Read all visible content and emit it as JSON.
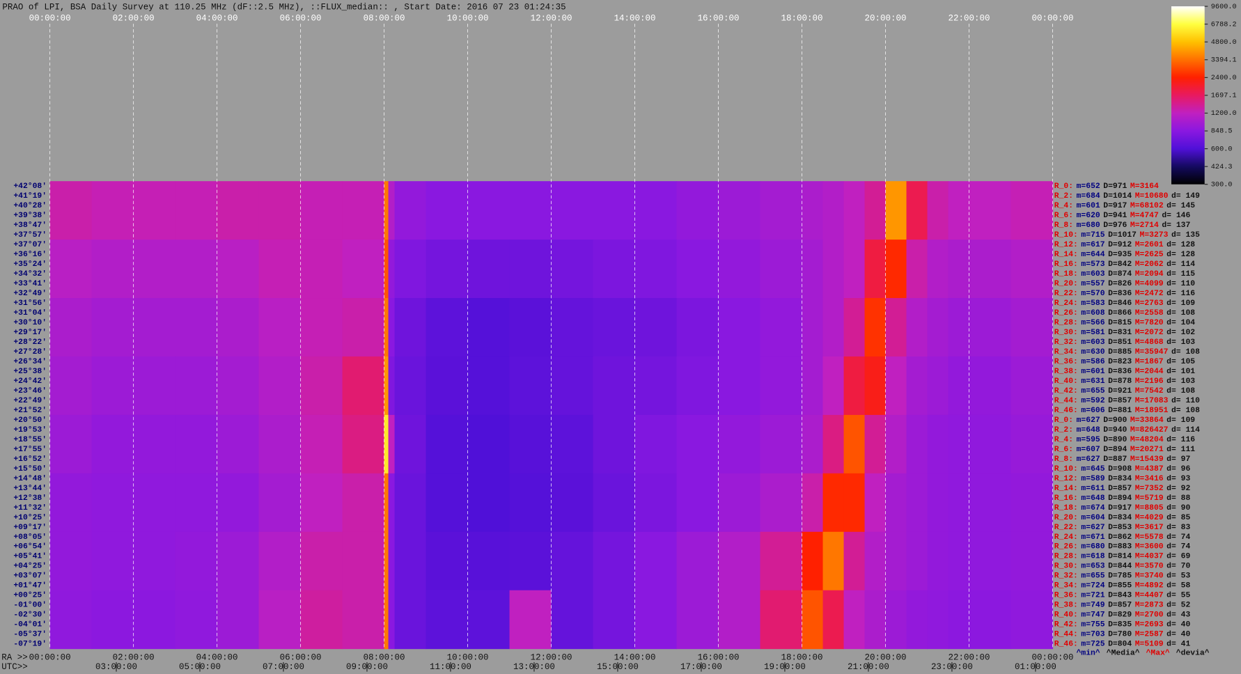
{
  "chart_data": {
    "type": "heatmap",
    "title": "PRAO of LPI, BSA Daily Survey at 110.25 MHz (dF::2.5 MHz), ::FLUX_median:: , Start Date: 2016 07 23 01:24:35",
    "ra_label": "RA >>",
    "utc_label": "UTC>>",
    "xlim": [
      0,
      24
    ],
    "xticks": [
      {
        "value": 0,
        "label": "00:00:00"
      },
      {
        "value": 2,
        "label": "02:00:00"
      },
      {
        "value": 4,
        "label": "04:00:00"
      },
      {
        "value": 6,
        "label": "06:00:00"
      },
      {
        "value": 8,
        "label": "08:00:00"
      },
      {
        "value": 10,
        "label": "10:00:00"
      },
      {
        "value": 12,
        "label": "12:00:00"
      },
      {
        "value": 14,
        "label": "14:00:00"
      },
      {
        "value": 16,
        "label": "16:00:00"
      },
      {
        "value": 18,
        "label": "18:00:00"
      },
      {
        "value": 20,
        "label": "20:00:00"
      },
      {
        "value": 22,
        "label": "22:00:00"
      },
      {
        "value": 24,
        "label": "00:00:00"
      }
    ],
    "x2ticks": [
      {
        "value": 1.59,
        "label": "03:00:00"
      },
      {
        "value": 3.59,
        "label": "05:00:00"
      },
      {
        "value": 5.59,
        "label": "07:00:00"
      },
      {
        "value": 7.59,
        "label": "09:00:00"
      },
      {
        "value": 9.59,
        "label": "11:00:00"
      },
      {
        "value": 11.59,
        "label": "13:00:00"
      },
      {
        "value": 13.59,
        "label": "15:00:00"
      },
      {
        "value": 15.59,
        "label": "17:00:00"
      },
      {
        "value": 17.59,
        "label": "19:00:00"
      },
      {
        "value": 19.59,
        "label": "21:00:00"
      },
      {
        "value": 21.59,
        "label": "23:00:00"
      },
      {
        "value": 23.59,
        "label": "01:00:00"
      }
    ],
    "dec_labels": [
      "+42°08'",
      "+41°19'",
      "+40°28'",
      "+39°38'",
      "+38°47'",
      "+37°57'",
      "+37°07'",
      "+36°16'",
      "+35°24'",
      "+34°32'",
      "+33°41'",
      "+32°49'",
      "+31°56'",
      "+31°04'",
      "+30°10'",
      "+29°17'",
      "+28°22'",
      "+27°28'",
      "+26°34'",
      "+25°38'",
      "+24°42'",
      "+23°46'",
      "+22°49'",
      "+21°52'",
      "+20°50'",
      "+19°53'",
      "+18°55'",
      "+17°55'",
      "+16°52'",
      "+15°50'",
      "+14°48'",
      "+13°44'",
      "+12°38'",
      "+11°32'",
      "+10°25'",
      "+09°17'",
      "+08°05'",
      "+06°54'",
      "+05°41'",
      "+04°25'",
      "+03°07'",
      "+01°47'",
      "+00°25'",
      "-01°00'",
      "-02°30'",
      "-04°01'",
      "-05°37'",
      "-07°19'"
    ],
    "x_edges": [
      0,
      1,
      2,
      3,
      4,
      5,
      6,
      7,
      8,
      8.1,
      8.25,
      9,
      10,
      11,
      12,
      13,
      14,
      15,
      16,
      17,
      18,
      18.5,
      19,
      19.5,
      20,
      20.5,
      21,
      21.5,
      22,
      23,
      24
    ],
    "z": [
      [
        1300,
        1250,
        1250,
        1250,
        1300,
        1300,
        1250,
        1250,
        3500,
        1100,
        900,
        850,
        850,
        850,
        850,
        850,
        850,
        900,
        950,
        1000,
        1050,
        1100,
        1200,
        1400,
        4000,
        1800,
        1300,
        1200,
        1200,
        1250
      ],
      [
        1150,
        1100,
        1100,
        1100,
        1150,
        1250,
        1250,
        1200,
        3000,
        900,
        800,
        750,
        720,
        720,
        750,
        780,
        800,
        850,
        900,
        950,
        1000,
        1100,
        1200,
        1900,
        2500,
        1300,
        1100,
        1050,
        1050,
        1100
      ],
      [
        1050,
        1000,
        1000,
        1000,
        1050,
        1150,
        1250,
        1300,
        3500,
        850,
        720,
        650,
        620,
        640,
        680,
        700,
        720,
        780,
        850,
        900,
        1000,
        1100,
        1400,
        2600,
        1400,
        1100,
        1000,
        950,
        950,
        1000
      ],
      [
        1000,
        950,
        950,
        950,
        1000,
        1100,
        1300,
        1600,
        4000,
        800,
        700,
        640,
        620,
        650,
        680,
        720,
        750,
        800,
        850,
        900,
        1000,
        1200,
        1900,
        2200,
        1200,
        1000,
        950,
        900,
        900,
        950
      ],
      [
        950,
        900,
        900,
        900,
        950,
        1050,
        1250,
        1500,
        6000,
        1200,
        720,
        620,
        600,
        630,
        650,
        720,
        800,
        850,
        900,
        950,
        1050,
        1500,
        3000,
        1400,
        1100,
        950,
        900,
        880,
        880,
        920
      ],
      [
        900,
        880,
        880,
        880,
        900,
        1000,
        1200,
        1300,
        3500,
        850,
        700,
        620,
        600,
        620,
        640,
        700,
        780,
        850,
        950,
        1050,
        1300,
        2500,
        2500,
        1200,
        1000,
        950,
        900,
        880,
        880,
        900
      ],
      [
        900,
        880,
        880,
        900,
        950,
        1100,
        1300,
        1300,
        3500,
        850,
        700,
        640,
        630,
        640,
        680,
        750,
        850,
        950,
        1100,
        1400,
        2400,
        3500,
        1400,
        1100,
        1000,
        950,
        900,
        880,
        880,
        900
      ],
      [
        880,
        860,
        860,
        880,
        950,
        1150,
        1350,
        1300,
        3500,
        850,
        700,
        650,
        650,
        1200,
        680,
        750,
        850,
        950,
        1100,
        1600,
        3000,
        1800,
        1200,
        1050,
        950,
        900,
        880,
        860,
        860,
        880
      ]
    ],
    "clim": [
      300,
      9600
    ],
    "log_color": true,
    "colormap": [
      "#000000",
      "#140a60",
      "#5010d8",
      "#8a18e0",
      "#c020c0",
      "#e81a60",
      "#ff2000",
      "#ff7000",
      "#ffc000",
      "#ffff40",
      "#ffffff"
    ],
    "cticks": [
      {
        "value": 9600,
        "label": "9600.0"
      },
      6788.2,
      {
        "value": 4800,
        "label": "4800.0"
      },
      3394.1,
      {
        "value": 2400,
        "label": "2400.0"
      },
      1697.1,
      {
        "value": 1200,
        "label": "1200.0"
      },
      848.5,
      {
        "value": 600,
        "label": "600.0"
      },
      424.3,
      {
        "value": 300,
        "label": "300.0"
      }
    ],
    "grid": true,
    "row_stats": [
      {
        "r": "R_0:",
        "m": "m=652",
        "D": "D=971",
        "M": "M=3164"
      },
      {
        "r": "R_2:",
        "m": "m=684",
        "D": "D=1014",
        "M": "M=10680",
        "d": "d= 149"
      },
      {
        "r": "R_4:",
        "m": "m=601",
        "D": "D=917",
        "M": "M=68102",
        "d": "d= 145"
      },
      {
        "r": "R_6:",
        "m": "m=620",
        "D": "D=941",
        "M": "M=4747",
        "d": "d= 146"
      },
      {
        "r": "R_8:",
        "m": "m=680",
        "D": "D=976",
        "M": "M=2714",
        "d": "d= 137"
      },
      {
        "r": "R_10:",
        "m": "m=715",
        "D": "D=1017",
        "M": "M=3273",
        "d": "d= 135"
      },
      {
        "r": "R_12:",
        "m": "m=617",
        "D": "D=912",
        "M": "M=2601",
        "d": "d= 128"
      },
      {
        "r": "R_14:",
        "m": "m=644",
        "D": "D=935",
        "M": "M=2625",
        "d": "d= 128"
      },
      {
        "r": "R_16:",
        "m": "m=573",
        "D": "D=842",
        "M": "M=2062",
        "d": "d= 114"
      },
      {
        "r": "R_18:",
        "m": "m=603",
        "D": "D=874",
        "M": "M=2094",
        "d": "d= 115"
      },
      {
        "r": "R_20:",
        "m": "m=557",
        "D": "D=826",
        "M": "M=4099",
        "d": "d= 110"
      },
      {
        "r": "R_22:",
        "m": "m=570",
        "D": "D=836",
        "M": "M=2472",
        "d": "d= 116"
      },
      {
        "r": "R_24:",
        "m": "m=583",
        "D": "D=846",
        "M": "M=2763",
        "d": "d= 109"
      },
      {
        "r": "R_26:",
        "m": "m=608",
        "D": "D=866",
        "M": "M=2558",
        "d": "d= 108"
      },
      {
        "r": "R_28:",
        "m": "m=566",
        "D": "D=815",
        "M": "M=7820",
        "d": "d= 104"
      },
      {
        "r": "R_30:",
        "m": "m=581",
        "D": "D=831",
        "M": "M=2072",
        "d": "d= 102"
      },
      {
        "r": "R_32:",
        "m": "m=603",
        "D": "D=851",
        "M": "M=4868",
        "d": "d= 103"
      },
      {
        "r": "R_34:",
        "m": "m=630",
        "D": "D=885",
        "M": "M=35947",
        "d": "d= 108"
      },
      {
        "r": "R_36:",
        "m": "m=586",
        "D": "D=823",
        "M": "M=1867",
        "d": "d= 105"
      },
      {
        "r": "R_38:",
        "m": "m=601",
        "D": "D=836",
        "M": "M=2044",
        "d": "d= 101"
      },
      {
        "r": "R_40:",
        "m": "m=631",
        "D": "D=878",
        "M": "M=2196",
        "d": "d= 103"
      },
      {
        "r": "R_42:",
        "m": "m=655",
        "D": "D=921",
        "M": "M=7542",
        "d": "d= 108"
      },
      {
        "r": "R_44:",
        "m": "m=592",
        "D": "D=857",
        "M": "M=17083",
        "d": "d= 110"
      },
      {
        "r": "R_46:",
        "m": "m=606",
        "D": "D=881",
        "M": "M=18951",
        "d": "d= 108"
      },
      {
        "r": "R_0:",
        "m": "m=627",
        "D": "D=900",
        "M": "M=33864",
        "d": "d= 109"
      },
      {
        "r": "R_2:",
        "m": "m=648",
        "D": "D=940",
        "M": "M=826427",
        "d": "d= 114"
      },
      {
        "r": "R_4:",
        "m": "m=595",
        "D": "D=890",
        "M": "M=48204",
        "d": "d= 116"
      },
      {
        "r": "R_6:",
        "m": "m=607",
        "D": "D=894",
        "M": "M=20271",
        "d": "d= 111"
      },
      {
        "r": "R_8:",
        "m": "m=627",
        "D": "D=887",
        "M": "M=15439",
        "d": "d= 97"
      },
      {
        "r": "R_10:",
        "m": "m=645",
        "D": "D=908",
        "M": "M=4387",
        "d": "d= 96"
      },
      {
        "r": "R_12:",
        "m": "m=589",
        "D": "D=834",
        "M": "M=3416",
        "d": "d= 93"
      },
      {
        "r": "R_14:",
        "m": "m=611",
        "D": "D=857",
        "M": "M=7352",
        "d": "d= 92"
      },
      {
        "r": "R_16:",
        "m": "m=648",
        "D": "D=894",
        "M": "M=5719",
        "d": "d= 88"
      },
      {
        "r": "R_18:",
        "m": "m=674",
        "D": "D=917",
        "M": "M=8805",
        "d": "d= 90"
      },
      {
        "r": "R_20:",
        "m": "m=604",
        "D": "D=834",
        "M": "M=4029",
        "d": "d= 85"
      },
      {
        "r": "R_22:",
        "m": "m=627",
        "D": "D=853",
        "M": "M=3617",
        "d": "d= 83"
      },
      {
        "r": "R_24:",
        "m": "m=671",
        "D": "D=862",
        "M": "M=5578",
        "d": "d= 74"
      },
      {
        "r": "R_26:",
        "m": "m=680",
        "D": "D=883",
        "M": "M=3600",
        "d": "d= 74"
      },
      {
        "r": "R_28:",
        "m": "m=618",
        "D": "D=814",
        "M": "M=4037",
        "d": "d= 69"
      },
      {
        "r": "R_30:",
        "m": "m=653",
        "D": "D=844",
        "M": "M=3570",
        "d": "d= 70"
      },
      {
        "r": "R_32:",
        "m": "m=655",
        "D": "D=785",
        "M": "M=3740",
        "d": "d= 53"
      },
      {
        "r": "R_34:",
        "m": "m=724",
        "D": "D=855",
        "M": "M=4892",
        "d": "d= 58"
      },
      {
        "r": "R_36:",
        "m": "m=721",
        "D": "D=843",
        "M": "M=4407",
        "d": "d= 55"
      },
      {
        "r": "R_38:",
        "m": "m=749",
        "D": "D=857",
        "M": "M=2873",
        "d": "d= 52"
      },
      {
        "r": "R_40:",
        "m": "m=747",
        "D": "D=829",
        "M": "M=2700",
        "d": "d= 43"
      },
      {
        "r": "R_42:",
        "m": "m=755",
        "D": "D=835",
        "M": "M=2693",
        "d": "d= 40"
      },
      {
        "r": "R_44:",
        "m": "m=703",
        "D": "D=780",
        "M": "M=2587",
        "d": "d= 40"
      },
      {
        "r": "R_46:",
        "m": "m=725",
        "D": "D=804",
        "M": "M=5109",
        "d": "d= 41"
      }
    ],
    "stats_legend": [
      "^min^",
      "^Media^",
      "^Max^",
      "^devia^"
    ]
  }
}
